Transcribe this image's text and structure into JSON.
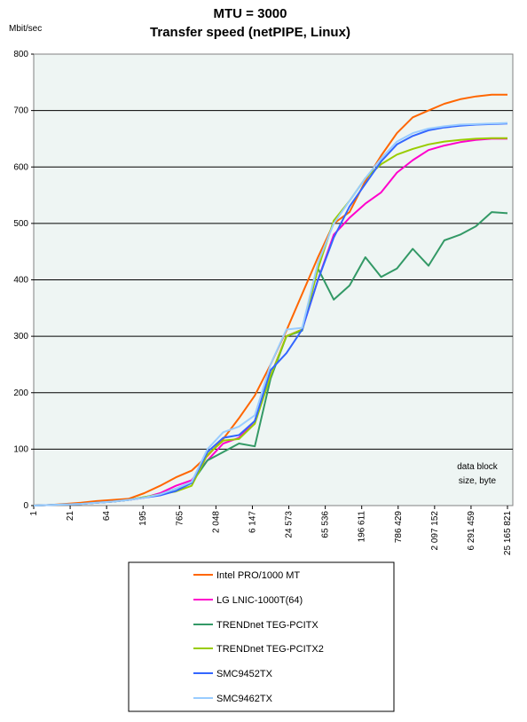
{
  "chart_data": {
    "type": "line",
    "title": "MTU = 3000",
    "subtitle": "Transfer speed (netPIPE, Linux)",
    "ylabel": "Mbit/sec",
    "xlabel": "data block size, byte",
    "ylim": [
      0,
      800
    ],
    "yticks": [
      "0",
      "100",
      "200",
      "300",
      "400",
      "500",
      "600",
      "700",
      "800"
    ],
    "xticks": [
      "1",
      "21",
      "64",
      "195",
      "765",
      "2 048",
      "6 147",
      "24 573",
      "65 536",
      "196 611",
      "786 429",
      "2 097 152",
      "6 291 459",
      "25 165 821"
    ],
    "grid": true,
    "legend": "bottom",
    "series": [
      {
        "name": "Intel PRO/1000 MT",
        "color": "#ff6600",
        "values": [
          [
            0,
            0
          ],
          [
            1,
            1
          ],
          [
            2,
            3
          ],
          [
            3,
            5
          ],
          [
            4,
            8
          ],
          [
            5,
            10
          ],
          [
            6,
            12
          ],
          [
            7,
            22
          ],
          [
            8,
            35
          ],
          [
            9,
            50
          ],
          [
            10,
            62
          ],
          [
            11,
            88
          ],
          [
            12,
            118
          ],
          [
            13,
            155
          ],
          [
            14,
            195
          ],
          [
            15,
            250
          ],
          [
            16,
            310
          ],
          [
            17,
            375
          ],
          [
            18,
            440
          ],
          [
            19,
            500
          ],
          [
            20,
            520
          ],
          [
            21,
            575
          ],
          [
            22,
            620
          ],
          [
            23,
            660
          ],
          [
            24,
            688
          ],
          [
            25,
            700
          ],
          [
            26,
            712
          ],
          [
            27,
            720
          ],
          [
            28,
            725
          ],
          [
            29,
            728
          ],
          [
            30,
            728
          ]
        ]
      },
      {
        "name": "LG LNIC-1000T(64)",
        "color": "#ff00cc",
        "values": [
          [
            0,
            0
          ],
          [
            1,
            1
          ],
          [
            2,
            2
          ],
          [
            3,
            3
          ],
          [
            4,
            5
          ],
          [
            5,
            7
          ],
          [
            6,
            10
          ],
          [
            7,
            14
          ],
          [
            8,
            22
          ],
          [
            9,
            35
          ],
          [
            10,
            45
          ],
          [
            11,
            80
          ],
          [
            12,
            110
          ],
          [
            13,
            120
          ],
          [
            14,
            150
          ],
          [
            15,
            230
          ],
          [
            16,
            300
          ],
          [
            17,
            312
          ],
          [
            18,
            400
          ],
          [
            19,
            480
          ],
          [
            20,
            510
          ],
          [
            21,
            535
          ],
          [
            22,
            555
          ],
          [
            23,
            590
          ],
          [
            24,
            612
          ],
          [
            25,
            630
          ],
          [
            26,
            638
          ],
          [
            27,
            644
          ],
          [
            28,
            648
          ],
          [
            29,
            650
          ],
          [
            30,
            650
          ]
        ]
      },
      {
        "name": "TRENDnet TEG-PCITX",
        "color": "#339966",
        "values": [
          [
            0,
            0
          ],
          [
            1,
            1
          ],
          [
            2,
            2
          ],
          [
            3,
            3
          ],
          [
            4,
            5
          ],
          [
            5,
            7
          ],
          [
            6,
            10
          ],
          [
            7,
            15
          ],
          [
            8,
            20
          ],
          [
            9,
            30
          ],
          [
            10,
            40
          ],
          [
            11,
            80
          ],
          [
            12,
            95
          ],
          [
            13,
            110
          ],
          [
            14,
            105
          ],
          [
            15,
            225
          ],
          [
            16,
            300
          ],
          [
            17,
            310
          ],
          [
            18,
            420
          ],
          [
            19,
            365
          ],
          [
            20,
            390
          ],
          [
            21,
            440
          ],
          [
            22,
            405
          ],
          [
            23,
            420
          ],
          [
            24,
            455
          ],
          [
            25,
            425
          ],
          [
            26,
            470
          ],
          [
            27,
            480
          ],
          [
            28,
            495
          ],
          [
            29,
            520
          ],
          [
            30,
            518
          ]
        ]
      },
      {
        "name": "TRENDnet TEG-PCITX2",
        "color": "#99cc00",
        "values": [
          [
            0,
            0
          ],
          [
            1,
            1
          ],
          [
            2,
            2
          ],
          [
            3,
            3
          ],
          [
            4,
            5
          ],
          [
            5,
            7
          ],
          [
            6,
            10
          ],
          [
            7,
            15
          ],
          [
            8,
            20
          ],
          [
            9,
            25
          ],
          [
            10,
            35
          ],
          [
            11,
            90
          ],
          [
            12,
            115
          ],
          [
            13,
            118
          ],
          [
            14,
            145
          ],
          [
            15,
            230
          ],
          [
            16,
            300
          ],
          [
            17,
            312
          ],
          [
            18,
            420
          ],
          [
            19,
            505
          ],
          [
            20,
            540
          ],
          [
            21,
            580
          ],
          [
            22,
            605
          ],
          [
            23,
            622
          ],
          [
            24,
            632
          ],
          [
            25,
            640
          ],
          [
            26,
            645
          ],
          [
            27,
            648
          ],
          [
            28,
            650
          ],
          [
            29,
            651
          ],
          [
            30,
            651
          ]
        ]
      },
      {
        "name": "SMC9452TX",
        "color": "#3366ff",
        "values": [
          [
            0,
            0
          ],
          [
            1,
            1
          ],
          [
            2,
            2
          ],
          [
            3,
            3
          ],
          [
            4,
            5
          ],
          [
            5,
            7
          ],
          [
            6,
            10
          ],
          [
            7,
            14
          ],
          [
            8,
            18
          ],
          [
            9,
            26
          ],
          [
            10,
            40
          ],
          [
            11,
            95
          ],
          [
            12,
            120
          ],
          [
            13,
            125
          ],
          [
            14,
            150
          ],
          [
            15,
            240
          ],
          [
            16,
            270
          ],
          [
            17,
            312
          ],
          [
            18,
            400
          ],
          [
            19,
            475
          ],
          [
            20,
            530
          ],
          [
            21,
            570
          ],
          [
            22,
            610
          ],
          [
            23,
            640
          ],
          [
            24,
            655
          ],
          [
            25,
            665
          ],
          [
            26,
            670
          ],
          [
            27,
            673
          ],
          [
            28,
            675
          ],
          [
            29,
            676
          ],
          [
            30,
            677
          ]
        ]
      },
      {
        "name": "SMC9462TX",
        "color": "#99ccff",
        "values": [
          [
            0,
            0
          ],
          [
            1,
            1
          ],
          [
            2,
            2
          ],
          [
            3,
            3
          ],
          [
            4,
            5
          ],
          [
            5,
            7
          ],
          [
            6,
            10
          ],
          [
            7,
            14
          ],
          [
            8,
            20
          ],
          [
            9,
            30
          ],
          [
            10,
            42
          ],
          [
            11,
            100
          ],
          [
            12,
            130
          ],
          [
            13,
            140
          ],
          [
            14,
            160
          ],
          [
            15,
            250
          ],
          [
            16,
            312
          ],
          [
            17,
            315
          ],
          [
            18,
            430
          ],
          [
            19,
            500
          ],
          [
            20,
            540
          ],
          [
            21,
            580
          ],
          [
            22,
            615
          ],
          [
            23,
            645
          ],
          [
            24,
            660
          ],
          [
            25,
            668
          ],
          [
            26,
            672
          ],
          [
            27,
            675
          ],
          [
            28,
            676
          ],
          [
            29,
            677
          ],
          [
            30,
            678
          ]
        ]
      }
    ]
  }
}
